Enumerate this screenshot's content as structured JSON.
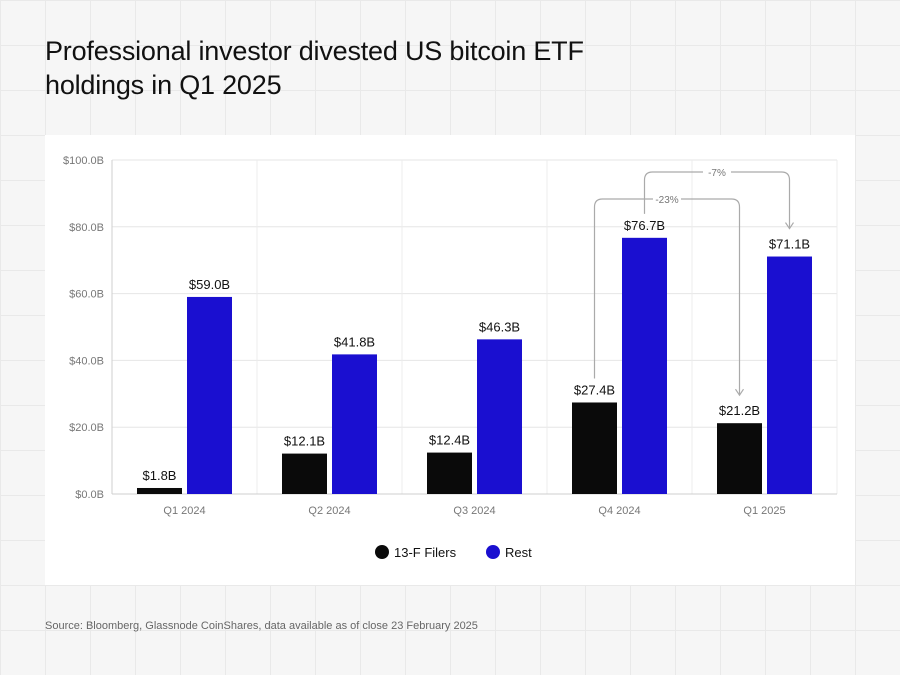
{
  "title": "Professional investor divested US bitcoin ETF holdings in Q1 2025",
  "source": "Source: Bloomberg, Glassnode CoinShares, data available as of close 23 February 2025",
  "colors": {
    "filers": "#0a0a0a",
    "rest": "#1a0fd0",
    "annotation": "#aaaaaa"
  },
  "chart_data": {
    "type": "bar",
    "title": "Professional investor divested US bitcoin ETF holdings in Q1 2025",
    "categories": [
      "Q1 2024",
      "Q2 2024",
      "Q3 2024",
      "Q4 2024",
      "Q1 2025"
    ],
    "series": [
      {
        "name": "13-F Filers",
        "values": [
          1.8,
          12.1,
          12.4,
          27.4,
          21.2
        ],
        "labels": [
          "$1.8B",
          "$12.1B",
          "$12.4B",
          "$27.4B",
          "$21.2B"
        ]
      },
      {
        "name": "Rest",
        "values": [
          59.0,
          41.8,
          46.3,
          76.7,
          71.1
        ],
        "labels": [
          "$59.0B",
          "$41.8B",
          "$46.3B",
          "$76.7B",
          "$71.1B"
        ]
      }
    ],
    "ylim": [
      0,
      100
    ],
    "yticks": [
      0,
      20,
      40,
      60,
      80,
      100
    ],
    "ytick_labels": [
      "$0.0B",
      "$20.0B",
      "$40.0B",
      "$60.0B",
      "$80.0B",
      "$100.0B"
    ],
    "xlabel": "",
    "ylabel": "",
    "grid": true,
    "legend_position": "bottom-center",
    "annotations": [
      {
        "text": "-23%",
        "series": "13-F Filers",
        "from": "Q4 2024",
        "to": "Q1 2025"
      },
      {
        "text": "-7%",
        "series": "Rest",
        "from": "Q4 2024",
        "to": "Q1 2025"
      }
    ]
  }
}
